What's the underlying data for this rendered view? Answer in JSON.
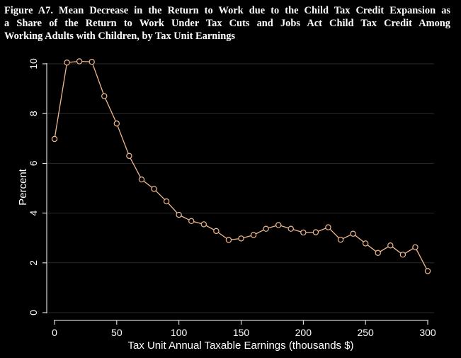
{
  "figure": {
    "title_lines": [
      "Figure A7. Mean Decrease in the Return to Work due to the Child Tax Credit Expansion as",
      "a Share of the Return to Work Under Tax Cuts and Jobs Act Child Tax Credit Among",
      "Working Adults with Children, by Tax Unit Earnings"
    ]
  },
  "colors": {
    "background": "#000000",
    "line": "#f0b88e",
    "axis": "#ffffff",
    "grid": "#2a2a2a"
  },
  "chart_data": {
    "type": "line",
    "title": "Figure A7. Mean Decrease in the Return to Work due to the Child Tax Credit Expansion as a Share of the Return to Work Under Tax Cuts and Jobs Act Child Tax Credit Among Working Adults with Children, by Tax Unit Earnings",
    "xlabel": "Tax Unit Annual Taxable Earnings (thousands $)",
    "ylabel": "Percent",
    "xlim": [
      0,
      300
    ],
    "ylim": [
      0,
      10
    ],
    "xticks": [
      0,
      50,
      100,
      150,
      200,
      250,
      300
    ],
    "yticks": [
      0,
      2,
      4,
      6,
      8,
      10
    ],
    "grid": true,
    "markers": "hollow-circle",
    "x": [
      0,
      10,
      20,
      30,
      40,
      50,
      60,
      70,
      80,
      90,
      100,
      110,
      120,
      130,
      140,
      150,
      160,
      170,
      180,
      190,
      200,
      210,
      220,
      230,
      240,
      250,
      260,
      270,
      280,
      290,
      300
    ],
    "y": [
      6.98,
      10.05,
      10.1,
      10.08,
      8.7,
      7.6,
      6.3,
      5.35,
      4.97,
      4.47,
      3.93,
      3.68,
      3.55,
      3.28,
      2.92,
      2.98,
      3.12,
      3.37,
      3.52,
      3.37,
      3.22,
      3.23,
      3.43,
      2.93,
      3.17,
      2.78,
      2.4,
      2.7,
      2.33,
      2.63,
      1.67
    ]
  }
}
